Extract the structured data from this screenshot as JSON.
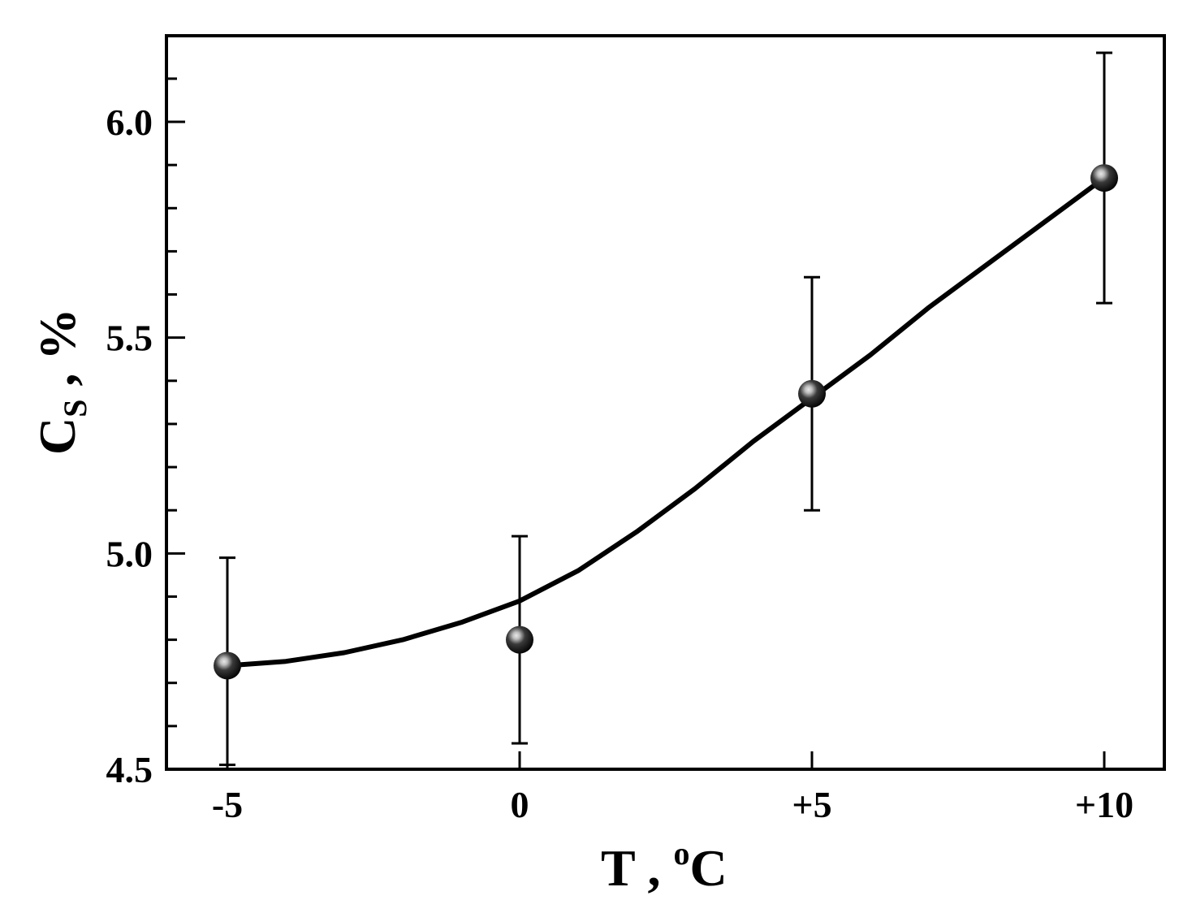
{
  "chart_data": {
    "type": "scatter",
    "title": "",
    "x_categories": [
      "-5",
      "0",
      "+5",
      "+10"
    ],
    "xlabel": {
      "main": "T , ",
      "sup": "o",
      "unit": "C"
    },
    "ylabel": {
      "main": "C",
      "sub": "S",
      "rest": " , %"
    },
    "ylim": [
      4.5,
      6.2
    ],
    "yticks_major": [
      4.5,
      5.0,
      5.5,
      6.0
    ],
    "ytick_labels": [
      "4.5",
      "5.0",
      "5.5",
      "6.0"
    ],
    "yticks_minor": [
      4.6,
      4.7,
      4.8,
      4.9,
      5.1,
      5.2,
      5.3,
      5.4,
      5.6,
      5.7,
      5.8,
      5.9,
      6.1
    ],
    "grid": false,
    "legend": false,
    "series": [
      {
        "points": [
          {
            "x": -5,
            "y": 4.74,
            "err_low": 4.51,
            "err_high": 4.99
          },
          {
            "x": 0,
            "y": 4.8,
            "err_low": 4.56,
            "err_high": 5.04
          },
          {
            "x": 5,
            "y": 5.37,
            "err_low": 5.1,
            "err_high": 5.64
          },
          {
            "x": 10,
            "y": 5.87,
            "err_low": 5.58,
            "err_high": 6.16
          }
        ],
        "fit_curve": [
          {
            "x": -5,
            "y": 4.74
          },
          {
            "x": -4,
            "y": 4.75
          },
          {
            "x": -3,
            "y": 4.77
          },
          {
            "x": -2,
            "y": 4.8
          },
          {
            "x": -1,
            "y": 4.84
          },
          {
            "x": 0,
            "y": 4.89
          },
          {
            "x": 1,
            "y": 4.96
          },
          {
            "x": 2,
            "y": 5.05
          },
          {
            "x": 3,
            "y": 5.15
          },
          {
            "x": 4,
            "y": 5.26
          },
          {
            "x": 5,
            "y": 5.36
          },
          {
            "x": 6,
            "y": 5.46
          },
          {
            "x": 7,
            "y": 5.57
          },
          {
            "x": 8,
            "y": 5.67
          },
          {
            "x": 9,
            "y": 5.77
          },
          {
            "x": 10,
            "y": 5.87
          }
        ]
      }
    ],
    "colors": {
      "line": "#000000",
      "marker": "#111111",
      "marker_highlight": "#cfcfcf"
    }
  }
}
